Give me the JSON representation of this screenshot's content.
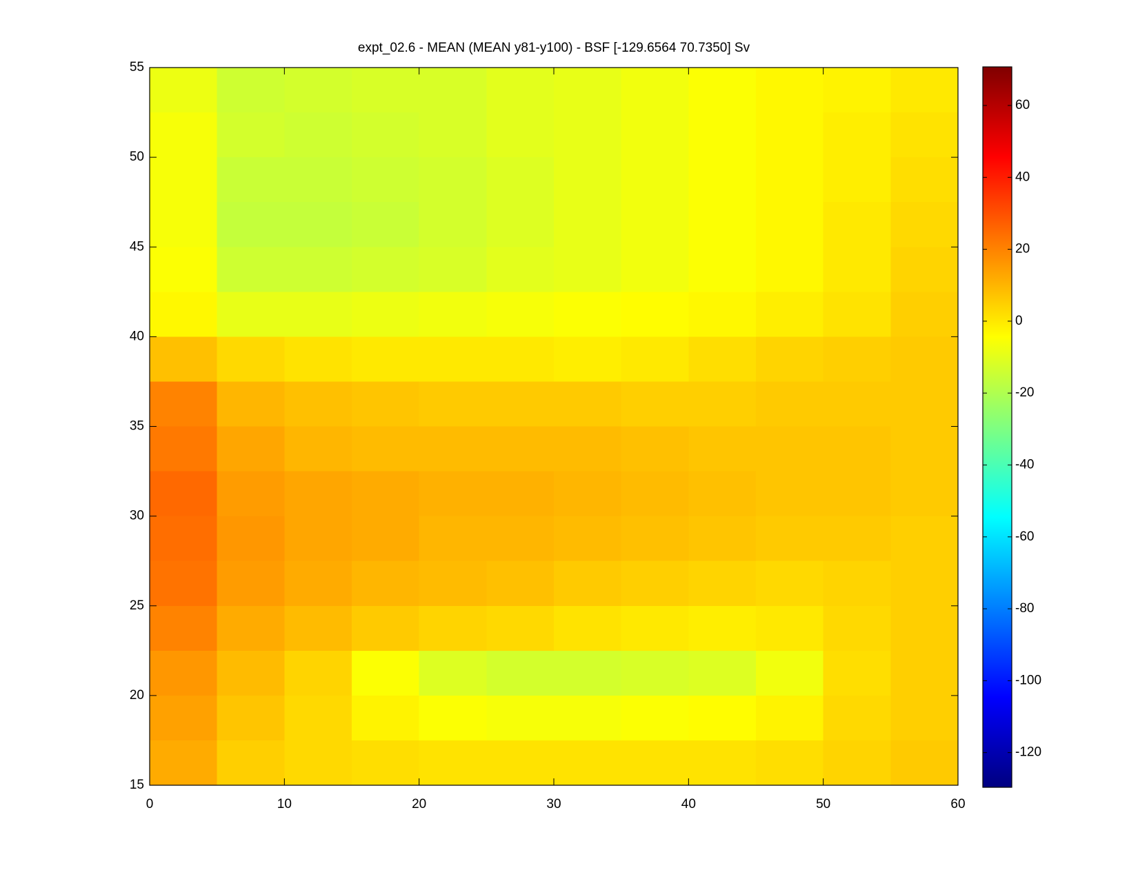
{
  "chart_data": {
    "type": "heatmap",
    "title": "expt_02.6 - MEAN (MEAN y81-y100) - BSF [-129.6564 70.7350] Sv",
    "colormap": "jet",
    "x": [
      2.5,
      7.5,
      12.5,
      17.5,
      22.5,
      27.5,
      32.5,
      37.5,
      42.5,
      47.5,
      52.5,
      57.5
    ],
    "y": [
      53.75,
      51.25,
      48.75,
      46.25,
      43.75,
      41.25,
      38.75,
      36.25,
      33.75,
      31.25,
      28.75,
      26.25,
      23.75,
      21.25,
      18.75,
      16.25
    ],
    "z": [
      [
        -8,
        -14,
        -13,
        -12,
        -12,
        -10,
        -9,
        -7,
        -5,
        -3,
        -2,
        0
      ],
      [
        -6,
        -13,
        -14,
        -13,
        -12,
        -10,
        -9,
        -7,
        -5,
        -3,
        -1,
        1
      ],
      [
        -6,
        -15,
        -15,
        -14,
        -13,
        -11,
        -9,
        -7,
        -5,
        -3,
        -1,
        2
      ],
      [
        -6,
        -16,
        -16,
        -15,
        -13,
        -11,
        -9,
        -7,
        -5,
        -3,
        0,
        3
      ],
      [
        -5,
        -14,
        -14,
        -13,
        -12,
        -10,
        -9,
        -7,
        -5,
        -3,
        0,
        4
      ],
      [
        -3,
        -9,
        -9,
        -8,
        -7,
        -6,
        -5,
        -4,
        -3,
        -1,
        1,
        5
      ],
      [
        8,
        3,
        1,
        0,
        0,
        0,
        -1,
        0,
        2,
        4,
        5,
        6
      ],
      [
        20,
        10,
        8,
        7,
        6,
        6,
        6,
        5,
        5,
        6,
        6,
        6
      ],
      [
        22,
        13,
        10,
        9,
        9,
        9,
        9,
        8,
        7,
        7,
        7,
        6
      ],
      [
        25,
        15,
        13,
        12,
        11,
        11,
        10,
        9,
        8,
        7,
        7,
        6
      ],
      [
        24,
        16,
        13,
        12,
        10,
        10,
        9,
        8,
        7,
        6,
        6,
        5
      ],
      [
        23,
        15,
        12,
        10,
        9,
        8,
        6,
        5,
        4,
        3,
        4,
        5
      ],
      [
        20,
        12,
        9,
        6,
        4,
        3,
        1,
        0,
        -1,
        0,
        3,
        5
      ],
      [
        16,
        9,
        4,
        -5,
        -11,
        -13,
        -13,
        -12,
        -11,
        -7,
        2,
        5
      ],
      [
        14,
        7,
        3,
        -2,
        -5,
        -6,
        -6,
        -5,
        -4,
        -2,
        3,
        5
      ],
      [
        12,
        5,
        3,
        2,
        1,
        1,
        1,
        1,
        1,
        2,
        4,
        6
      ]
    ],
    "xlim": [
      0,
      60
    ],
    "xticks": [
      0,
      10,
      20,
      30,
      40,
      50,
      60
    ],
    "ylim": [
      15,
      55
    ],
    "yticks": [
      15,
      20,
      25,
      30,
      35,
      40,
      45,
      50,
      55
    ],
    "clim": [
      -129.6564,
      70.735
    ],
    "cticks": [
      -120,
      -100,
      -80,
      -60,
      -40,
      -20,
      0,
      20,
      40,
      60
    ]
  }
}
